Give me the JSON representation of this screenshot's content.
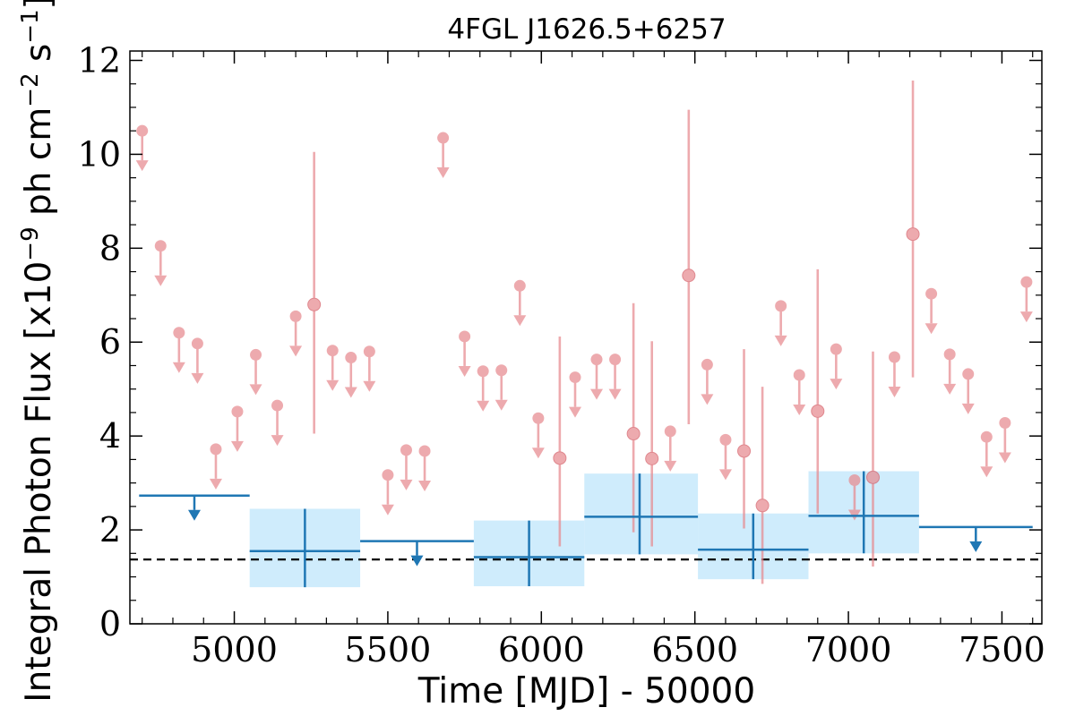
{
  "chart_data": {
    "type": "scatter",
    "title": "4FGL J1626.5+6257",
    "xlabel": "Time [MJD] - 50000",
    "ylabel_main": "Integral Photon Flux [x10",
    "ylabel_exp1": "−9",
    "ylabel_mid": " ph cm",
    "ylabel_exp2": "−2",
    "ylabel_s": " s",
    "ylabel_exp3": "−1",
    "ylabel_close": "]",
    "xlim": [
      4660,
      7630
    ],
    "ylim": [
      0,
      12.2
    ],
    "xticks": [
      "5000",
      "5500",
      "6000",
      "6500",
      "7000",
      "7500"
    ],
    "xtick_values": [
      5000,
      5500,
      6000,
      6500,
      7000,
      7500
    ],
    "yticks": [
      "0",
      "2",
      "4",
      "6",
      "8",
      "10",
      "12"
    ],
    "ytick_values": [
      0,
      2,
      4,
      6,
      8,
      10,
      12
    ],
    "reference_line": {
      "y": 1.37,
      "style": "dashed",
      "color": "#000000"
    },
    "colors": {
      "fine": "#e78a8f",
      "coarse": "#1f77b4",
      "band": "#bfe6fb"
    },
    "series": [
      {
        "binning": "fine",
        "upper_limits": [
          {
            "x": 4700,
            "y": 10.5
          },
          {
            "x": 4760,
            "y": 8.05
          },
          {
            "x": 4820,
            "y": 6.2
          },
          {
            "x": 4880,
            "y": 5.97
          },
          {
            "x": 4940,
            "y": 3.72
          },
          {
            "x": 5010,
            "y": 4.52
          },
          {
            "x": 5070,
            "y": 5.73
          },
          {
            "x": 5140,
            "y": 4.65
          },
          {
            "x": 5200,
            "y": 6.55
          },
          {
            "x": 5320,
            "y": 5.82
          },
          {
            "x": 5380,
            "y": 5.67
          },
          {
            "x": 5440,
            "y": 5.8
          },
          {
            "x": 5500,
            "y": 3.17
          },
          {
            "x": 5560,
            "y": 3.7
          },
          {
            "x": 5620,
            "y": 3.68
          },
          {
            "x": 5680,
            "y": 10.35
          },
          {
            "x": 5750,
            "y": 6.12
          },
          {
            "x": 5810,
            "y": 5.38
          },
          {
            "x": 5870,
            "y": 5.4
          },
          {
            "x": 5930,
            "y": 7.2
          },
          {
            "x": 5990,
            "y": 4.38
          },
          {
            "x": 6110,
            "y": 5.25
          },
          {
            "x": 6180,
            "y": 5.63
          },
          {
            "x": 6240,
            "y": 5.63
          },
          {
            "x": 6420,
            "y": 4.1
          },
          {
            "x": 6540,
            "y": 5.52
          },
          {
            "x": 6600,
            "y": 3.92
          },
          {
            "x": 6780,
            "y": 6.77
          },
          {
            "x": 6840,
            "y": 5.3
          },
          {
            "x": 6960,
            "y": 5.85
          },
          {
            "x": 7020,
            "y": 3.06
          },
          {
            "x": 7150,
            "y": 5.68
          },
          {
            "x": 7270,
            "y": 7.03
          },
          {
            "x": 7330,
            "y": 5.74
          },
          {
            "x": 7390,
            "y": 5.32
          },
          {
            "x": 7450,
            "y": 3.98
          },
          {
            "x": 7510,
            "y": 4.28
          },
          {
            "x": 7580,
            "y": 7.28
          }
        ],
        "detections": [
          {
            "x": 5260,
            "y": 6.8,
            "lo": 4.05,
            "hi": 10.05
          },
          {
            "x": 6060,
            "y": 3.53,
            "lo": 1.65,
            "hi": 6.12
          },
          {
            "x": 6300,
            "y": 4.05,
            "lo": 1.95,
            "hi": 6.83
          },
          {
            "x": 6360,
            "y": 3.52,
            "lo": 1.65,
            "hi": 6.02
          },
          {
            "x": 6480,
            "y": 7.42,
            "lo": 4.25,
            "hi": 10.95
          },
          {
            "x": 6660,
            "y": 3.68,
            "lo": 2.03,
            "hi": 5.85
          },
          {
            "x": 6720,
            "y": 2.52,
            "lo": 0.85,
            "hi": 5.05
          },
          {
            "x": 6900,
            "y": 4.53,
            "lo": 2.35,
            "hi": 7.55
          },
          {
            "x": 7080,
            "y": 3.12,
            "lo": 1.22,
            "hi": 5.8
          },
          {
            "x": 7210,
            "y": 8.3,
            "lo": 5.25,
            "hi": 11.57
          }
        ]
      },
      {
        "binning": "coarse",
        "upper_limits": [
          {
            "x0": 4690,
            "x1": 5050,
            "y": 2.73,
            "xc": 4870
          },
          {
            "x0": 5410,
            "x1": 5780,
            "y": 1.76,
            "xc": 5595
          },
          {
            "x0": 7230,
            "x1": 7600,
            "y": 2.06,
            "xc": 7415
          }
        ],
        "detections": [
          {
            "x0": 5050,
            "x1": 5410,
            "xc": 5230,
            "y": 1.55,
            "lo": 0.78,
            "hi": 2.45
          },
          {
            "x0": 5780,
            "x1": 6140,
            "xc": 5960,
            "y": 1.42,
            "lo": 0.8,
            "hi": 2.2
          },
          {
            "x0": 6140,
            "x1": 6510,
            "xc": 6320,
            "y": 2.28,
            "lo": 1.48,
            "hi": 3.2
          },
          {
            "x0": 6510,
            "x1": 6870,
            "xc": 6690,
            "y": 1.58,
            "lo": 0.95,
            "hi": 2.35
          },
          {
            "x0": 6870,
            "x1": 7230,
            "xc": 7050,
            "y": 2.3,
            "lo": 1.5,
            "hi": 3.25
          }
        ]
      }
    ]
  }
}
